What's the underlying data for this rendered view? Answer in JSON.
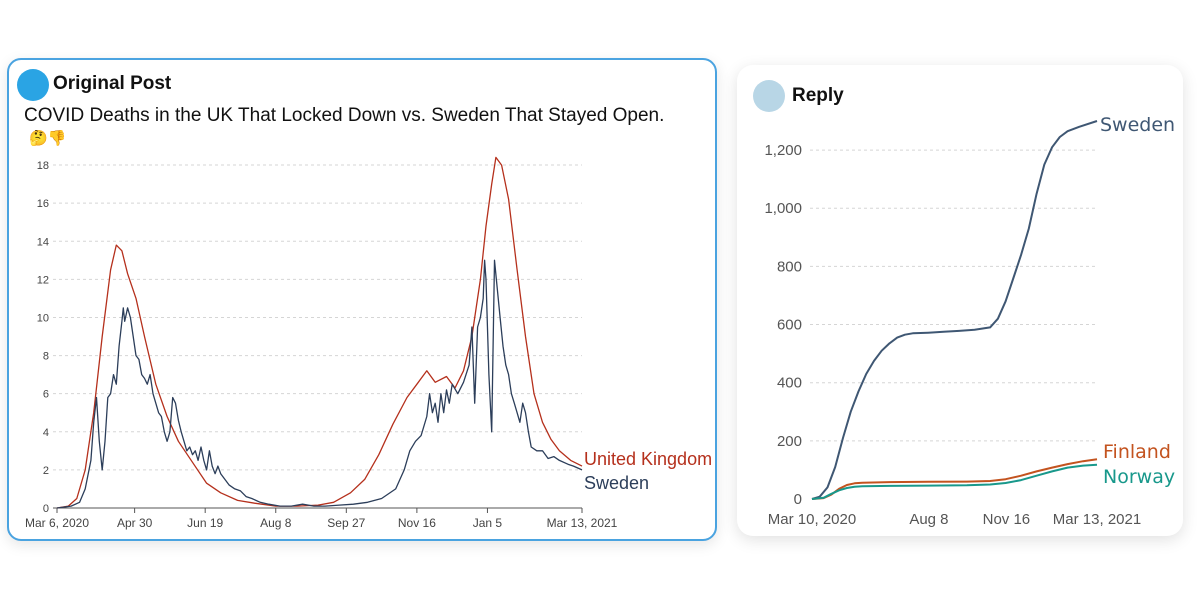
{
  "post": {
    "author": "Original Post",
    "text": "COVID Deaths in the UK That Locked Down vs. Sweden That Stayed Open.",
    "emojis": "🤔👎"
  },
  "reply": {
    "author": "Reply"
  },
  "colors": {
    "accent_border": "#4aa3e0",
    "avatar_post": "#2aa4e4",
    "avatar_reply": "#b8d6e6",
    "uk": "#b5301c",
    "sweden_left": "#2c3e5a",
    "sweden_right": "#3f5773",
    "finland": "#c3531f",
    "norway": "#18988b"
  },
  "chart_data": [
    {
      "type": "line",
      "title": "",
      "xlabel": "",
      "ylabel": "",
      "x_tick_labels": [
        "Mar 6, 2020",
        "Apr 30",
        "Jun 19",
        "Aug 8",
        "Sep 27",
        "Nov 16",
        "Jan 5",
        "Mar 13, 2021"
      ],
      "x_tick_days": [
        0,
        55,
        105,
        155,
        205,
        255,
        305,
        372
      ],
      "y_ticks": [
        0,
        2,
        4,
        6,
        8,
        10,
        12,
        14,
        16,
        18
      ],
      "ylim": [
        0,
        19
      ],
      "xlim_days": [
        0,
        372
      ],
      "grid": true,
      "legend": "inline-end-labels",
      "series": [
        {
          "name": "United Kingdom",
          "color_key": "uk",
          "points": [
            [
              0,
              0
            ],
            [
              8,
              0.1
            ],
            [
              14,
              0.5
            ],
            [
              20,
              2
            ],
            [
              26,
              5
            ],
            [
              32,
              9
            ],
            [
              38,
              12.5
            ],
            [
              42,
              13.8
            ],
            [
              46,
              13.5
            ],
            [
              50,
              12.3
            ],
            [
              56,
              11
            ],
            [
              62,
              9
            ],
            [
              70,
              6.5
            ],
            [
              78,
              4.8
            ],
            [
              86,
              3.5
            ],
            [
              96,
              2.4
            ],
            [
              106,
              1.3
            ],
            [
              116,
              0.8
            ],
            [
              128,
              0.4
            ],
            [
              140,
              0.25
            ],
            [
              155,
              0.1
            ],
            [
              170,
              0.1
            ],
            [
              185,
              0.15
            ],
            [
              196,
              0.3
            ],
            [
              208,
              0.8
            ],
            [
              218,
              1.5
            ],
            [
              228,
              2.8
            ],
            [
              238,
              4.4
            ],
            [
              248,
              5.8
            ],
            [
              256,
              6.6
            ],
            [
              262,
              7.2
            ],
            [
              268,
              6.6
            ],
            [
              276,
              6.9
            ],
            [
              282,
              6.3
            ],
            [
              288,
              7.2
            ],
            [
              294,
              9
            ],
            [
              300,
              12
            ],
            [
              304,
              14.8
            ],
            [
              308,
              17
            ],
            [
              311,
              18.4
            ],
            [
              315,
              18
            ],
            [
              320,
              16.2
            ],
            [
              326,
              12.5
            ],
            [
              332,
              9
            ],
            [
              338,
              6
            ],
            [
              344,
              4.5
            ],
            [
              350,
              3.6
            ],
            [
              356,
              3
            ],
            [
              364,
              2.5
            ],
            [
              372,
              2.2
            ]
          ]
        },
        {
          "name": "Sweden",
          "color_key": "sweden_left",
          "points": [
            [
              0,
              0
            ],
            [
              10,
              0.1
            ],
            [
              16,
              0.3
            ],
            [
              20,
              1
            ],
            [
              24,
              2.5
            ],
            [
              26,
              4.5
            ],
            [
              28,
              5.8
            ],
            [
              30,
              3.5
            ],
            [
              32,
              2
            ],
            [
              34,
              3.5
            ],
            [
              36,
              5.8
            ],
            [
              38,
              6
            ],
            [
              40,
              7
            ],
            [
              42,
              6.5
            ],
            [
              44,
              8.5
            ],
            [
              46,
              9.8
            ],
            [
              47,
              10.5
            ],
            [
              48,
              9.8
            ],
            [
              50,
              10.5
            ],
            [
              52,
              10
            ],
            [
              54,
              9
            ],
            [
              56,
              8
            ],
            [
              58,
              7.8
            ],
            [
              60,
              7
            ],
            [
              62,
              6.8
            ],
            [
              64,
              6.5
            ],
            [
              66,
              7
            ],
            [
              68,
              6
            ],
            [
              70,
              5.5
            ],
            [
              72,
              5
            ],
            [
              74,
              4.8
            ],
            [
              76,
              4
            ],
            [
              78,
              3.5
            ],
            [
              80,
              4
            ],
            [
              82,
              5.8
            ],
            [
              84,
              5.5
            ],
            [
              86,
              4.6
            ],
            [
              88,
              4
            ],
            [
              90,
              3.5
            ],
            [
              92,
              3
            ],
            [
              94,
              3.2
            ],
            [
              96,
              2.8
            ],
            [
              98,
              3
            ],
            [
              100,
              2.5
            ],
            [
              102,
              3.2
            ],
            [
              104,
              2.5
            ],
            [
              106,
              2
            ],
            [
              108,
              3
            ],
            [
              110,
              2.2
            ],
            [
              112,
              1.8
            ],
            [
              114,
              2.2
            ],
            [
              116,
              1.8
            ],
            [
              118,
              1.6
            ],
            [
              122,
              1.2
            ],
            [
              126,
              1
            ],
            [
              130,
              0.9
            ],
            [
              134,
              0.6
            ],
            [
              138,
              0.5
            ],
            [
              144,
              0.3
            ],
            [
              150,
              0.2
            ],
            [
              158,
              0.1
            ],
            [
              166,
              0.1
            ],
            [
              174,
              0.2
            ],
            [
              182,
              0.1
            ],
            [
              190,
              0.1
            ],
            [
              200,
              0.15
            ],
            [
              210,
              0.2
            ],
            [
              220,
              0.3
            ],
            [
              230,
              0.5
            ],
            [
              240,
              1
            ],
            [
              246,
              2
            ],
            [
              250,
              3
            ],
            [
              254,
              3.5
            ],
            [
              258,
              3.8
            ],
            [
              262,
              4.8
            ],
            [
              264,
              6
            ],
            [
              266,
              5
            ],
            [
              268,
              5.5
            ],
            [
              270,
              4.5
            ],
            [
              272,
              6
            ],
            [
              274,
              5
            ],
            [
              276,
              6.2
            ],
            [
              278,
              5.5
            ],
            [
              280,
              6.5
            ],
            [
              284,
              6
            ],
            [
              288,
              6.6
            ],
            [
              292,
              7.5
            ],
            [
              294,
              9.5
            ],
            [
              296,
              5.5
            ],
            [
              298,
              9.5
            ],
            [
              300,
              10
            ],
            [
              302,
              11
            ],
            [
              303,
              13
            ],
            [
              304,
              12
            ],
            [
              306,
              7
            ],
            [
              308,
              4
            ],
            [
              310,
              13
            ],
            [
              312,
              11.5
            ],
            [
              314,
              10
            ],
            [
              316,
              8.5
            ],
            [
              318,
              7.5
            ],
            [
              320,
              7
            ],
            [
              322,
              6
            ],
            [
              324,
              5.5
            ],
            [
              326,
              5
            ],
            [
              328,
              4.5
            ],
            [
              330,
              5.5
            ],
            [
              332,
              5
            ],
            [
              334,
              4
            ],
            [
              336,
              3.2
            ],
            [
              340,
              3
            ],
            [
              344,
              3
            ],
            [
              348,
              2.6
            ],
            [
              352,
              2.7
            ],
            [
              356,
              2.5
            ],
            [
              362,
              2.3
            ],
            [
              366,
              2.2
            ],
            [
              372,
              2
            ]
          ]
        }
      ]
    },
    {
      "type": "line",
      "title": "",
      "xlabel": "",
      "ylabel": "",
      "x_tick_labels": [
        "Mar 10, 2020",
        "Aug 8",
        "Nov 16",
        "Mar 13, 2021"
      ],
      "x_tick_days": [
        0,
        151,
        251,
        368
      ],
      "y_ticks": [
        0,
        200,
        400,
        600,
        800,
        1000,
        1200
      ],
      "y_tick_labels": [
        "0",
        "200",
        "400",
        "600",
        "800",
        "1,000",
        "1,200"
      ],
      "ylim": [
        0,
        1300
      ],
      "xlim_days": [
        0,
        368
      ],
      "grid": true,
      "legend": "inline-end-labels",
      "series": [
        {
          "name": "Sweden",
          "color_key": "sweden_right",
          "points": [
            [
              0,
              0
            ],
            [
              10,
              8
            ],
            [
              20,
              40
            ],
            [
              30,
              110
            ],
            [
              40,
              210
            ],
            [
              50,
              300
            ],
            [
              60,
              370
            ],
            [
              70,
              430
            ],
            [
              80,
              475
            ],
            [
              90,
              510
            ],
            [
              100,
              535
            ],
            [
              110,
              555
            ],
            [
              120,
              565
            ],
            [
              130,
              570
            ],
            [
              150,
              572
            ],
            [
              170,
              575
            ],
            [
              190,
              578
            ],
            [
              210,
              582
            ],
            [
              230,
              590
            ],
            [
              240,
              620
            ],
            [
              250,
              680
            ],
            [
              260,
              760
            ],
            [
              270,
              840
            ],
            [
              280,
              930
            ],
            [
              290,
              1050
            ],
            [
              300,
              1150
            ],
            [
              310,
              1210
            ],
            [
              320,
              1245
            ],
            [
              330,
              1265
            ],
            [
              345,
              1280
            ],
            [
              368,
              1300
            ]
          ]
        },
        {
          "name": "Finland",
          "color_key": "finland",
          "points": [
            [
              0,
              0
            ],
            [
              15,
              3
            ],
            [
              25,
              15
            ],
            [
              35,
              35
            ],
            [
              45,
              48
            ],
            [
              55,
              54
            ],
            [
              65,
              56
            ],
            [
              100,
              58
            ],
            [
              150,
              59
            ],
            [
              200,
              60
            ],
            [
              230,
              62
            ],
            [
              250,
              68
            ],
            [
              270,
              80
            ],
            [
              290,
              95
            ],
            [
              310,
              108
            ],
            [
              330,
              120
            ],
            [
              350,
              130
            ],
            [
              368,
              137
            ]
          ]
        },
        {
          "name": "Norway",
          "color_key": "norway",
          "points": [
            [
              0,
              0
            ],
            [
              15,
              4
            ],
            [
              25,
              18
            ],
            [
              35,
              30
            ],
            [
              45,
              38
            ],
            [
              55,
              42
            ],
            [
              65,
              44
            ],
            [
              100,
              45
            ],
            [
              150,
              46
            ],
            [
              200,
              47
            ],
            [
              230,
              50
            ],
            [
              250,
              55
            ],
            [
              270,
              65
            ],
            [
              290,
              80
            ],
            [
              310,
              95
            ],
            [
              330,
              108
            ],
            [
              350,
              115
            ],
            [
              368,
              118
            ]
          ]
        }
      ]
    }
  ]
}
